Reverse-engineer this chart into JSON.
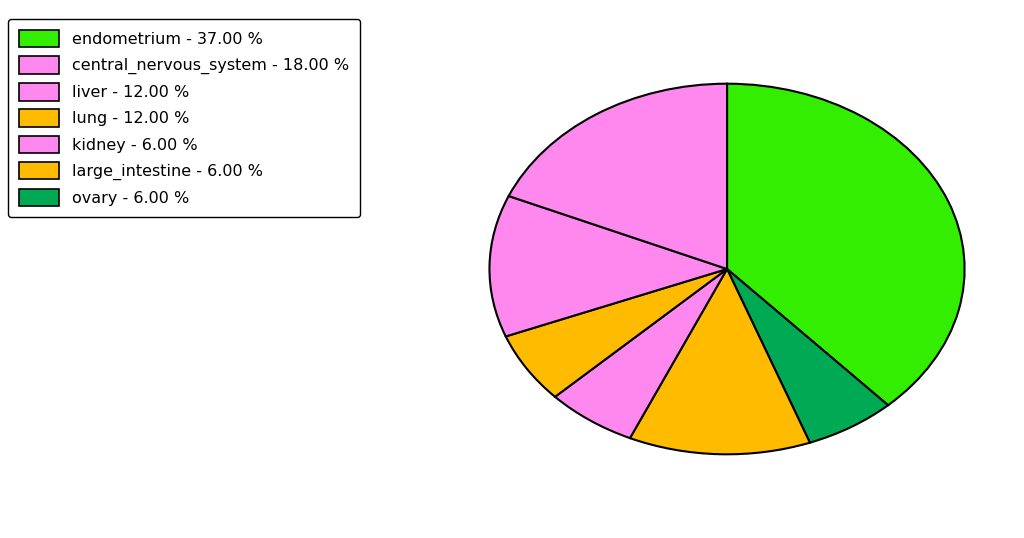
{
  "pie_labels": [
    "endometrium",
    "ovary",
    "lung",
    "kidney",
    "large_intestine",
    "liver",
    "central_nervous_system"
  ],
  "pie_values": [
    37,
    6,
    12,
    6,
    6,
    12,
    18
  ],
  "pie_colors": [
    "#33ee00",
    "#00aa55",
    "#ffbb00",
    "#ff88ee",
    "#ffbb00",
    "#ff88ee",
    "#ff88ee"
  ],
  "legend_labels": [
    "endometrium - 37.00 %",
    "central_nervous_system - 18.00 %",
    "liver - 12.00 %",
    "lung - 12.00 %",
    "kidney - 6.00 %",
    "large_intestine - 6.00 %",
    "ovary - 6.00 %"
  ],
  "legend_colors": [
    "#33ee00",
    "#ff88ee",
    "#ff88ee",
    "#ffbb00",
    "#ff88ee",
    "#ffbb00",
    "#00aa55"
  ],
  "figsize": [
    10.24,
    5.38
  ],
  "dpi": 100
}
